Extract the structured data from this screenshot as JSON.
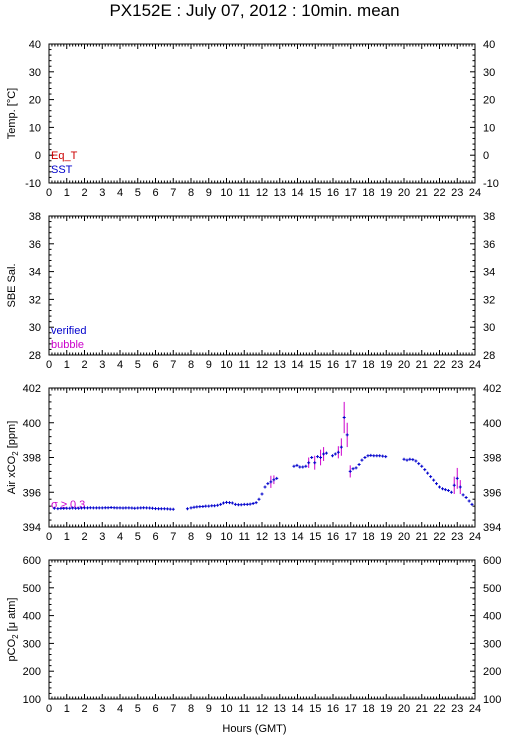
{
  "title": "PX152E : July 07, 2012 : 10min. mean",
  "xlabel": "Hours (GMT)",
  "colors": {
    "eq_t": "#cc0000",
    "sst": "#0000cc",
    "verified": "#0000cc",
    "bubble": "#cc00cc",
    "sigma": "#cc00cc",
    "axis": "#000000"
  },
  "chart_data": [
    {
      "type": "line",
      "id": "temp",
      "ylabel": "Temp. [°C]",
      "xlim": [
        0,
        24
      ],
      "ylim": [
        -10,
        40
      ],
      "yticks": [
        -10,
        0,
        10,
        20,
        30,
        40
      ],
      "xticks": [
        0,
        1,
        2,
        3,
        4,
        5,
        6,
        7,
        8,
        9,
        10,
        11,
        12,
        13,
        14,
        15,
        16,
        17,
        18,
        19,
        20,
        21,
        22,
        23,
        24
      ],
      "legend": [
        "Eq_T",
        "SST"
      ],
      "series": []
    },
    {
      "type": "line",
      "id": "sal",
      "ylabel": "SBE Sal.",
      "xlim": [
        0,
        24
      ],
      "ylim": [
        28,
        38
      ],
      "yticks": [
        28,
        30,
        32,
        34,
        36,
        38
      ],
      "xticks": [
        0,
        1,
        2,
        3,
        4,
        5,
        6,
        7,
        8,
        9,
        10,
        11,
        12,
        13,
        14,
        15,
        16,
        17,
        18,
        19,
        20,
        21,
        22,
        23,
        24
      ],
      "legend": [
        "verified",
        "bubble"
      ],
      "series": []
    },
    {
      "type": "scatter",
      "id": "xco2",
      "ylabel_main": "Air xCO",
      "ylabel_sub": "2",
      "ylabel_tail": " [ppm]",
      "xlim": [
        0,
        24
      ],
      "ylim": [
        394,
        402
      ],
      "yticks": [
        394,
        396,
        398,
        400,
        402
      ],
      "xticks": [
        0,
        1,
        2,
        3,
        4,
        5,
        6,
        7,
        8,
        9,
        10,
        11,
        12,
        13,
        14,
        15,
        16,
        17,
        18,
        19,
        20,
        21,
        22,
        23,
        24
      ],
      "annotation": "σ ≥ 0.3",
      "points": [
        [
          0.3,
          395.08
        ],
        [
          0.5,
          395.06
        ],
        [
          0.67,
          395.07
        ],
        [
          0.83,
          395.07
        ],
        [
          1.0,
          395.08
        ],
        [
          1.17,
          395.08
        ],
        [
          1.33,
          395.09
        ],
        [
          1.5,
          395.08
        ],
        [
          1.67,
          395.08
        ],
        [
          1.83,
          395.09
        ],
        [
          2.0,
          395.1
        ],
        [
          2.17,
          395.1
        ],
        [
          2.33,
          395.11
        ],
        [
          2.5,
          395.1
        ],
        [
          2.67,
          395.1
        ],
        [
          2.83,
          395.1
        ],
        [
          3.0,
          395.1
        ],
        [
          3.17,
          395.11
        ],
        [
          3.33,
          395.11
        ],
        [
          3.5,
          395.12
        ],
        [
          3.67,
          395.11
        ],
        [
          3.83,
          395.1
        ],
        [
          4.0,
          395.1
        ],
        [
          4.17,
          395.09
        ],
        [
          4.33,
          395.1
        ],
        [
          4.5,
          395.1
        ],
        [
          4.67,
          395.09
        ],
        [
          4.83,
          395.08
        ],
        [
          5.0,
          395.09
        ],
        [
          5.17,
          395.1
        ],
        [
          5.33,
          395.11
        ],
        [
          5.5,
          395.1
        ],
        [
          5.67,
          395.09
        ],
        [
          5.83,
          395.08
        ],
        [
          6.0,
          395.06
        ],
        [
          6.17,
          395.05
        ],
        [
          6.33,
          395.05
        ],
        [
          6.5,
          395.05
        ],
        [
          6.67,
          395.04
        ],
        [
          6.83,
          395.03
        ],
        [
          7.0,
          395.02
        ],
        [
          7.8,
          395.05
        ],
        [
          8.0,
          395.1
        ],
        [
          8.17,
          395.14
        ],
        [
          8.33,
          395.16
        ],
        [
          8.5,
          395.17
        ],
        [
          8.67,
          395.18
        ],
        [
          8.83,
          395.2
        ],
        [
          9.0,
          395.2
        ],
        [
          9.17,
          395.22
        ],
        [
          9.33,
          395.22
        ],
        [
          9.5,
          395.25
        ],
        [
          9.67,
          395.3
        ],
        [
          9.83,
          395.38
        ],
        [
          10.0,
          395.42
        ],
        [
          10.17,
          395.4
        ],
        [
          10.33,
          395.38
        ],
        [
          10.5,
          395.3
        ],
        [
          10.67,
          395.28
        ],
        [
          10.83,
          395.28
        ],
        [
          11.0,
          395.3
        ],
        [
          11.17,
          395.3
        ],
        [
          11.33,
          395.32
        ],
        [
          11.5,
          395.35
        ],
        [
          11.67,
          395.4
        ],
        [
          11.83,
          395.6
        ],
        [
          12.0,
          395.9
        ],
        [
          12.17,
          396.3
        ],
        [
          12.33,
          396.5
        ],
        [
          12.5,
          396.6
        ],
        [
          12.67,
          396.72
        ],
        [
          12.83,
          396.8
        ],
        [
          13.8,
          397.5
        ],
        [
          13.97,
          397.55
        ],
        [
          14.13,
          397.45
        ],
        [
          14.3,
          397.45
        ],
        [
          14.47,
          397.5
        ],
        [
          14.63,
          397.7
        ],
        [
          14.8,
          398.0
        ],
        [
          14.97,
          397.7
        ],
        [
          15.13,
          398.05
        ],
        [
          15.3,
          398.0
        ],
        [
          15.47,
          398.2
        ],
        [
          15.63,
          398.25
        ],
        [
          15.97,
          398.1
        ],
        [
          16.13,
          398.2
        ],
        [
          16.3,
          398.3
        ],
        [
          16.47,
          398.6
        ],
        [
          16.63,
          400.3
        ],
        [
          16.8,
          399.3
        ],
        [
          16.97,
          397.2
        ],
        [
          17.13,
          397.35
        ],
        [
          17.3,
          397.4
        ],
        [
          17.47,
          397.6
        ],
        [
          17.63,
          397.85
        ],
        [
          17.8,
          398.0
        ],
        [
          17.97,
          398.1
        ],
        [
          18.13,
          398.12
        ],
        [
          18.3,
          398.1
        ],
        [
          18.47,
          398.1
        ],
        [
          18.63,
          398.1
        ],
        [
          18.8,
          398.08
        ],
        [
          18.97,
          398.05
        ],
        [
          20.0,
          397.9
        ],
        [
          20.17,
          397.85
        ],
        [
          20.33,
          397.9
        ],
        [
          20.5,
          397.88
        ],
        [
          20.67,
          397.8
        ],
        [
          20.83,
          397.65
        ],
        [
          21.0,
          397.5
        ],
        [
          21.17,
          397.3
        ],
        [
          21.33,
          397.1
        ],
        [
          21.5,
          396.9
        ],
        [
          21.67,
          396.7
        ],
        [
          21.83,
          396.5
        ],
        [
          22.0,
          396.3
        ],
        [
          22.17,
          396.2
        ],
        [
          22.33,
          396.15
        ],
        [
          22.5,
          396.1
        ],
        [
          22.67,
          396.0
        ],
        [
          22.83,
          396.4
        ],
        [
          23.0,
          396.8
        ],
        [
          23.17,
          396.3
        ],
        [
          23.33,
          395.85
        ],
        [
          23.5,
          395.7
        ],
        [
          23.67,
          395.5
        ],
        [
          23.83,
          395.3
        ]
      ],
      "error_bars": [
        [
          12.5,
          396.6,
          0.35
        ],
        [
          12.67,
          396.72,
          0.25
        ],
        [
          14.63,
          397.7,
          0.3
        ],
        [
          14.97,
          397.7,
          0.4
        ],
        [
          15.3,
          398.0,
          0.45
        ],
        [
          15.47,
          398.2,
          0.4
        ],
        [
          16.3,
          398.3,
          0.35
        ],
        [
          16.47,
          398.6,
          0.5
        ],
        [
          16.63,
          400.3,
          0.9
        ],
        [
          16.8,
          399.3,
          0.7
        ],
        [
          16.97,
          397.2,
          0.35
        ],
        [
          22.83,
          396.4,
          0.5
        ],
        [
          23.0,
          396.8,
          0.6
        ],
        [
          23.17,
          396.3,
          0.4
        ]
      ]
    },
    {
      "type": "line",
      "id": "pco2",
      "ylabel_main": "pCO",
      "ylabel_sub": "2",
      "ylabel_tail": " [μ atm]",
      "xlim": [
        0,
        24
      ],
      "ylim": [
        100,
        600
      ],
      "yticks": [
        100,
        200,
        300,
        400,
        500,
        600
      ],
      "xticks": [
        0,
        1,
        2,
        3,
        4,
        5,
        6,
        7,
        8,
        9,
        10,
        11,
        12,
        13,
        14,
        15,
        16,
        17,
        18,
        19,
        20,
        21,
        22,
        23,
        24
      ],
      "series": []
    }
  ]
}
